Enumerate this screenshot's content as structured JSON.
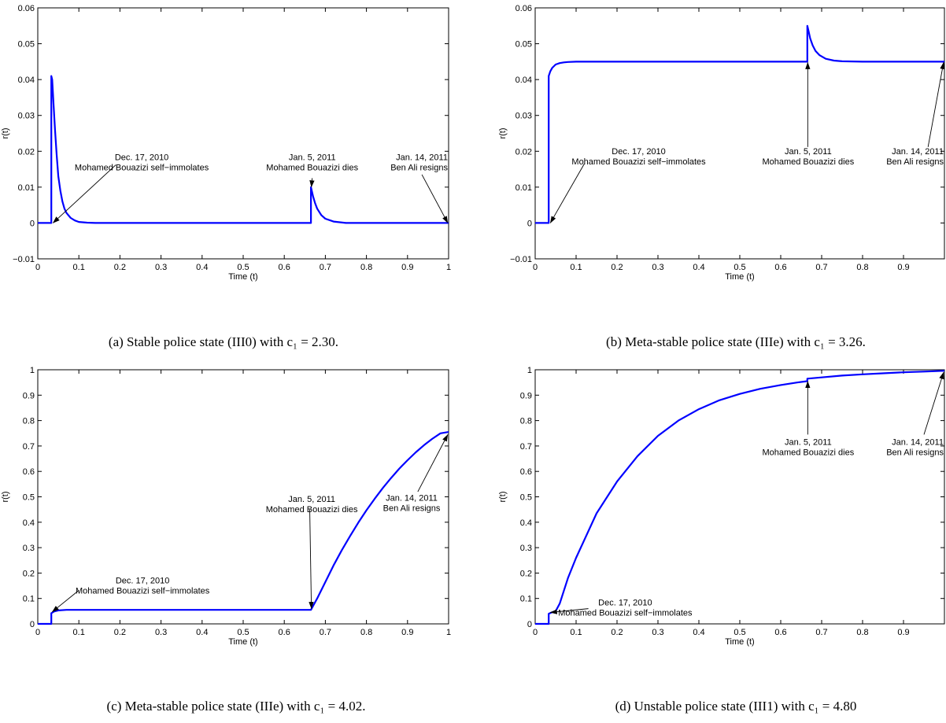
{
  "chart_data": [
    {
      "type": "line",
      "caption": "(a) Stable police state (III0) with c₁ = 2.30.",
      "xlabel": "Time (t)",
      "ylabel": "r(t)",
      "xlim": [
        0,
        1
      ],
      "ylim": [
        -0.01,
        0.06
      ],
      "xticks": [
        0,
        0.1,
        0.2,
        0.3,
        0.4,
        0.5,
        0.6,
        0.7,
        0.8,
        0.9,
        1
      ],
      "yticks": [
        -0.01,
        0,
        0.01,
        0.02,
        0.03,
        0.04,
        0.05,
        0.06
      ],
      "xtick_labels": [
        "0",
        "0.1",
        "0.2",
        "0.3",
        "0.4",
        "0.5",
        "0.6",
        "0.7",
        "0.8",
        "0.9",
        "1"
      ],
      "ytick_labels": [
        "−0.01",
        "0",
        "0.01",
        "0.02",
        "0.03",
        "0.04",
        "0.05",
        "0.06"
      ],
      "series": [
        {
          "color": "#0000ff",
          "x": [
            0,
            0.033,
            0.033,
            0.035,
            0.038,
            0.042,
            0.046,
            0.05,
            0.055,
            0.06,
            0.065,
            0.07,
            0.08,
            0.09,
            0.1,
            0.12,
            0.14,
            0.2,
            0.3,
            0.4,
            0.5,
            0.6,
            0.665,
            0.665,
            0.67,
            0.675,
            0.68,
            0.69,
            0.7,
            0.72,
            0.75,
            0.8,
            0.9,
            1.0
          ],
          "y": [
            0,
            0,
            0.041,
            0.04,
            0.034,
            0.026,
            0.019,
            0.013,
            0.009,
            0.006,
            0.004,
            0.0028,
            0.0014,
            0.0007,
            0.0003,
            0.0001,
            0,
            0,
            0,
            0,
            0,
            0,
            0,
            0.01,
            0.0075,
            0.0055,
            0.004,
            0.0022,
            0.0012,
            0.0004,
            0,
            0,
            0,
            0
          ]
        }
      ],
      "annotations": [
        {
          "lines": [
            "Dec. 17, 2010",
            "Mohamed Bouazizi self−immolates"
          ],
          "anchor": "middle",
          "text_x": 0.253,
          "text_y": 0.0175,
          "tip": [
            0.037,
            0.0
          ],
          "tail": [
            0.19,
            0.0162
          ]
        },
        {
          "lines": [
            "Jan. 5, 2011",
            "Mohamed Bouazizi dies"
          ],
          "anchor": "middle",
          "text_x": 0.668,
          "text_y": 0.0175,
          "tip": [
            0.666,
            0.01
          ],
          "tail": [
            0.668,
            0.0125
          ]
        },
        {
          "lines": [
            "Jan. 14, 2011",
            "Ben Ali resigns"
          ],
          "anchor": "end",
          "text_x": 0.998,
          "text_y": 0.0175,
          "tip": [
            0.998,
            0.0
          ],
          "tail": [
            0.935,
            0.0135
          ]
        }
      ]
    },
    {
      "type": "line",
      "caption": "(b) Meta-stable police state (IIIe) with c₁ = 3.26.",
      "xlabel": "Time (t)",
      "ylabel": "r(t)",
      "xlim": [
        0,
        1
      ],
      "ylim": [
        -0.01,
        0.06
      ],
      "xticks": [
        0,
        0.1,
        0.2,
        0.3,
        0.4,
        0.5,
        0.6,
        0.7,
        0.8,
        0.9,
        1
      ],
      "yticks": [
        -0.01,
        0,
        0.01,
        0.02,
        0.03,
        0.04,
        0.05,
        0.06
      ],
      "xtick_labels": [
        "0",
        "0.1",
        "0.2",
        "0.3",
        "0.4",
        "0.5",
        "0.6",
        "0.7",
        "0.8",
        "0.9",
        ""
      ],
      "ytick_labels": [
        "−0.01",
        "0",
        "0.01",
        "0.02",
        "0.03",
        "0.04",
        "0.05",
        "0.06"
      ],
      "series": [
        {
          "color": "#0000ff",
          "x": [
            0,
            0.033,
            0.033,
            0.037,
            0.042,
            0.05,
            0.06,
            0.07,
            0.08,
            0.1,
            0.2,
            0.4,
            0.6,
            0.665,
            0.665,
            0.668,
            0.672,
            0.678,
            0.685,
            0.695,
            0.71,
            0.73,
            0.75,
            0.8,
            0.9,
            1.0
          ],
          "y": [
            0,
            0,
            0.041,
            0.0423,
            0.0433,
            0.0442,
            0.0446,
            0.0448,
            0.0449,
            0.045,
            0.045,
            0.045,
            0.045,
            0.045,
            0.055,
            0.0535,
            0.0515,
            0.0495,
            0.048,
            0.0468,
            0.0458,
            0.0453,
            0.0451,
            0.045,
            0.045,
            0.045
          ]
        }
      ],
      "annotations": [
        {
          "lines": [
            "Dec. 17, 2010",
            "Mohamed Bouazizi self−immolates"
          ],
          "anchor": "middle",
          "text_x": 0.253,
          "text_y": 0.0192,
          "tip": [
            0.037,
            0.0
          ],
          "tail": [
            0.12,
            0.0165
          ]
        },
        {
          "lines": [
            "Jan. 5, 2011",
            "Mohamed Bouazizi dies"
          ],
          "anchor": "middle",
          "text_x": 0.667,
          "text_y": 0.0192,
          "tip": [
            0.666,
            0.0448
          ],
          "tail": [
            0.666,
            0.0212
          ]
        },
        {
          "lines": [
            "Jan. 14, 2011",
            "Ben Ali resigns"
          ],
          "anchor": "end",
          "text_x": 0.998,
          "text_y": 0.0192,
          "tip": [
            0.998,
            0.0448
          ],
          "tail": [
            0.96,
            0.0212
          ]
        }
      ]
    },
    {
      "type": "line",
      "caption": "(c) Meta-stable police state (IIIe) with c₁ = 4.02.",
      "xlabel": "Time (t)",
      "ylabel": "r(t)",
      "xlim": [
        0,
        1
      ],
      "ylim": [
        0,
        1
      ],
      "xticks": [
        0,
        0.1,
        0.2,
        0.3,
        0.4,
        0.5,
        0.6,
        0.7,
        0.8,
        0.9,
        1
      ],
      "yticks": [
        0,
        0.1,
        0.2,
        0.3,
        0.4,
        0.5,
        0.6,
        0.7,
        0.8,
        0.9,
        1
      ],
      "xtick_labels": [
        "0",
        "0.1",
        "0.2",
        "0.3",
        "0.4",
        "0.5",
        "0.6",
        "0.7",
        "0.8",
        "0.9",
        "1"
      ],
      "ytick_labels": [
        "0",
        "0.1",
        "0.2",
        "0.3",
        "0.4",
        "0.5",
        "0.6",
        "0.7",
        "0.8",
        "0.9",
        "1"
      ],
      "series": [
        {
          "color": "#0000ff",
          "x": [
            0,
            0.033,
            0.033,
            0.04,
            0.05,
            0.07,
            0.1,
            0.3,
            0.5,
            0.665,
            0.67,
            0.68,
            0.7,
            0.72,
            0.74,
            0.76,
            0.78,
            0.8,
            0.82,
            0.84,
            0.86,
            0.88,
            0.9,
            0.92,
            0.94,
            0.96,
            0.98,
            1.0
          ],
          "y": [
            0,
            0,
            0.042,
            0.049,
            0.053,
            0.055,
            0.055,
            0.055,
            0.055,
            0.055,
            0.07,
            0.1,
            0.165,
            0.23,
            0.29,
            0.345,
            0.398,
            0.447,
            0.492,
            0.535,
            0.574,
            0.611,
            0.644,
            0.675,
            0.703,
            0.728,
            0.75,
            0.755
          ]
        }
      ],
      "annotations": [
        {
          "lines": [
            "Dec. 17, 2010",
            "Mohamed Bouazizi self−immolates"
          ],
          "anchor": "middle",
          "text_x": 0.255,
          "text_y": 0.16,
          "tip": [
            0.035,
            0.047
          ],
          "tail": [
            0.1,
            0.132
          ]
        },
        {
          "lines": [
            "Jan. 5, 2011",
            "Mohamed Bouazizi dies"
          ],
          "anchor": "middle",
          "text_x": 0.667,
          "text_y": 0.48,
          "tip": [
            0.666,
            0.06
          ],
          "tail": [
            0.662,
            0.45
          ]
        },
        {
          "lines": [
            "Jan. 14, 2011",
            "Ben Ali resigns"
          ],
          "anchor": "middle",
          "text_x": 0.91,
          "text_y": 0.485,
          "tip": [
            0.998,
            0.745
          ],
          "tail": [
            0.925,
            0.52
          ]
        }
      ]
    },
    {
      "type": "line",
      "caption": "(d) Unstable police state (III1) with c₁ = 4.80",
      "xlabel": "Time (t)",
      "ylabel": "r(t)",
      "xlim": [
        0,
        1
      ],
      "ylim": [
        0,
        1
      ],
      "xticks": [
        0,
        0.1,
        0.2,
        0.3,
        0.4,
        0.5,
        0.6,
        0.7,
        0.8,
        0.9,
        1
      ],
      "yticks": [
        0,
        0.1,
        0.2,
        0.3,
        0.4,
        0.5,
        0.6,
        0.7,
        0.8,
        0.9,
        1
      ],
      "xtick_labels": [
        "0",
        "0.1",
        "0.2",
        "0.3",
        "0.4",
        "0.5",
        "0.6",
        "0.7",
        "0.8",
        "0.9",
        ""
      ],
      "ytick_labels": [
        "0",
        "0.1",
        "0.2",
        "0.3",
        "0.4",
        "0.5",
        "0.6",
        "0.7",
        "0.8",
        "0.9",
        "1"
      ],
      "series": [
        {
          "color": "#0000ff",
          "x": [
            0,
            0.033,
            0.033,
            0.04,
            0.05,
            0.06,
            0.08,
            0.1,
            0.12,
            0.15,
            0.2,
            0.25,
            0.3,
            0.35,
            0.4,
            0.45,
            0.5,
            0.55,
            0.6,
            0.64,
            0.665,
            0.665,
            0.7,
            0.75,
            0.8,
            0.85,
            0.9,
            0.95,
            1.0
          ],
          "y": [
            0,
            0,
            0.04,
            0.045,
            0.05,
            0.08,
            0.18,
            0.26,
            0.33,
            0.435,
            0.56,
            0.66,
            0.74,
            0.8,
            0.845,
            0.88,
            0.905,
            0.925,
            0.94,
            0.95,
            0.955,
            0.965,
            0.97,
            0.977,
            0.982,
            0.986,
            0.99,
            0.993,
            0.996
          ]
        }
      ],
      "annotations": [
        {
          "lines": [
            "Dec. 17, 2010",
            "Mohamed Bouazizi self−immolates"
          ],
          "anchor": "middle",
          "text_x": 0.22,
          "text_y": 0.072,
          "tip": [
            0.037,
            0.045
          ],
          "tail": [
            0.13,
            0.06
          ]
        },
        {
          "lines": [
            "Jan. 5, 2011",
            "Mohamed Bouazizi dies"
          ],
          "anchor": "middle",
          "text_x": 0.667,
          "text_y": 0.705,
          "tip": [
            0.666,
            0.955
          ],
          "tail": [
            0.666,
            0.745
          ]
        },
        {
          "lines": [
            "Jan. 14, 2011",
            "Ben Ali resigns"
          ],
          "anchor": "end",
          "text_x": 0.998,
          "text_y": 0.705,
          "tip": [
            0.998,
            0.99
          ],
          "tail": [
            0.95,
            0.745
          ]
        }
      ]
    }
  ]
}
